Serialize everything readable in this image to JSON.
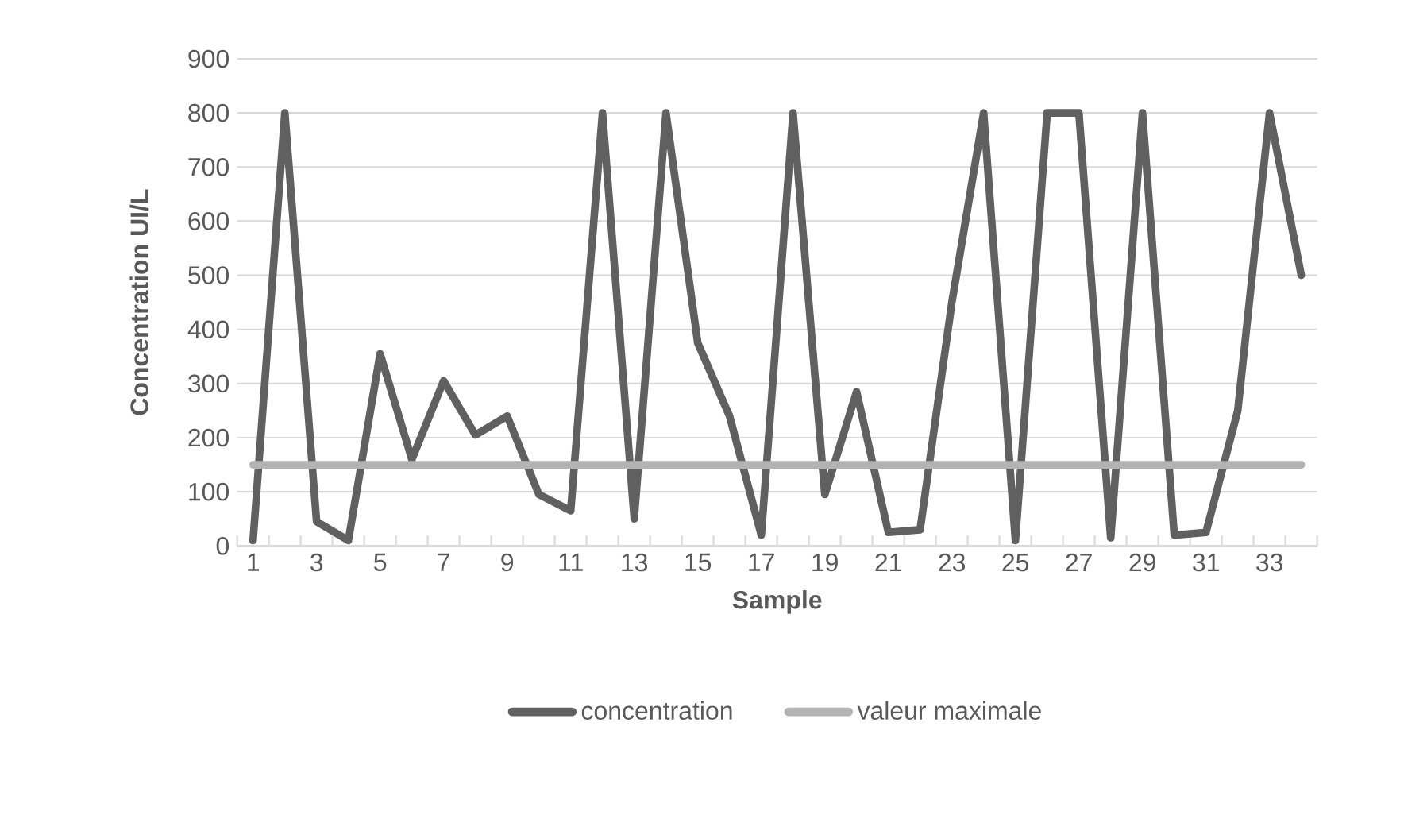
{
  "chart_data": {
    "type": "line",
    "xlabel": "Sample",
    "ylabel": "Concentration  UI/L",
    "categories": [
      "1",
      null,
      "3",
      null,
      "5",
      null,
      "7",
      null,
      "9",
      null,
      "11",
      null,
      "13",
      null,
      "15",
      null,
      "17",
      null,
      "19",
      null,
      "21",
      null,
      "23",
      null,
      "25",
      null,
      "27",
      null,
      "29",
      null,
      "31",
      null,
      "33",
      null
    ],
    "series": [
      {
        "name": "concentration",
        "color": "#606060",
        "values": [
          10,
          800,
          45,
          10,
          355,
          160,
          305,
          205,
          240,
          95,
          65,
          800,
          50,
          800,
          375,
          240,
          20,
          800,
          95,
          285,
          25,
          30,
          450,
          800,
          10,
          800,
          800,
          15,
          800,
          20,
          25,
          250,
          800,
          500
        ]
      },
      {
        "name": "valeur maximale",
        "color": "#b3b3b3",
        "values": [
          150,
          150,
          150,
          150,
          150,
          150,
          150,
          150,
          150,
          150,
          150,
          150,
          150,
          150,
          150,
          150,
          150,
          150,
          150,
          150,
          150,
          150,
          150,
          150,
          150,
          150,
          150,
          150,
          150,
          150,
          150,
          150,
          150,
          150
        ]
      }
    ],
    "ylim": [
      0,
      900
    ],
    "yticks": [
      0,
      100,
      200,
      300,
      400,
      500,
      600,
      700,
      800,
      900
    ],
    "grid": "y",
    "legend": "bottom",
    "marker": "none",
    "line_style": "solid"
  }
}
